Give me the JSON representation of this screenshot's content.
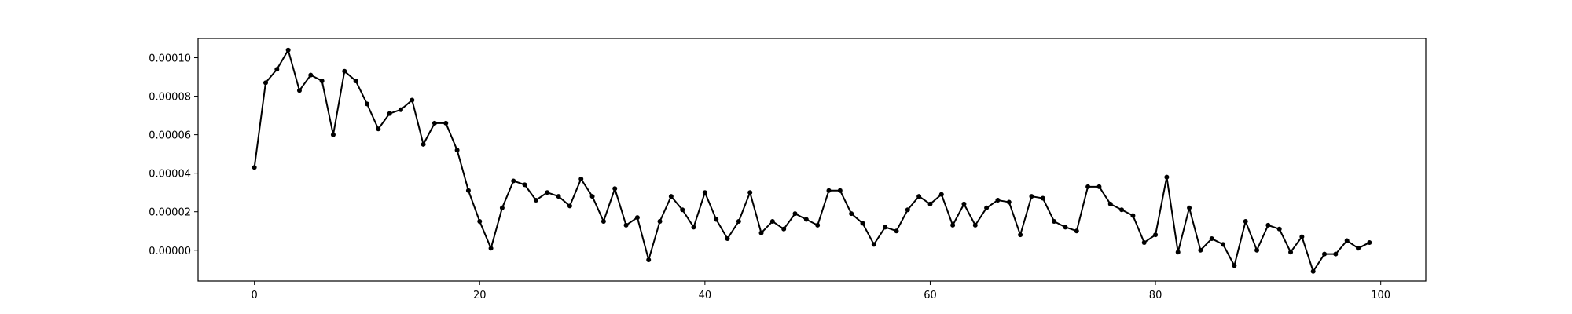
{
  "chart_data": {
    "type": "line",
    "title": "",
    "xlabel": "",
    "ylabel": "",
    "xlim": [
      -5,
      104
    ],
    "ylim": [
      -1.6e-05,
      0.00011
    ],
    "x_ticks": [
      0,
      20,
      40,
      60,
      80,
      100
    ],
    "x_tick_labels": [
      "0",
      "20",
      "40",
      "60",
      "80",
      "100"
    ],
    "y_ticks": [
      0,
      2e-05,
      4e-05,
      6e-05,
      8e-05,
      0.0001
    ],
    "y_tick_labels": [
      "0.00000",
      "0.00002",
      "0.00004",
      "0.00006",
      "0.00008",
      "0.00010"
    ],
    "grid": false,
    "legend": false,
    "series": [
      {
        "color": "#000000",
        "marker": "circle",
        "x": [
          0,
          1,
          2,
          3,
          4,
          5,
          6,
          7,
          8,
          9,
          10,
          11,
          12,
          13,
          14,
          15,
          16,
          17,
          18,
          19,
          20,
          21,
          22,
          23,
          24,
          25,
          26,
          27,
          28,
          29,
          30,
          31,
          32,
          33,
          34,
          35,
          36,
          37,
          38,
          39,
          40,
          41,
          42,
          43,
          44,
          45,
          46,
          47,
          48,
          49,
          50,
          51,
          52,
          53,
          54,
          55,
          56,
          57,
          58,
          59,
          60,
          61,
          62,
          63,
          64,
          65,
          66,
          67,
          68,
          69,
          70,
          71,
          72,
          73,
          74,
          75,
          76,
          77,
          78,
          79,
          80,
          81,
          82,
          83,
          84,
          85,
          86,
          87,
          88,
          89,
          90,
          91,
          92,
          93,
          94,
          95,
          96,
          97,
          98,
          99
        ],
        "y": [
          4.3e-05,
          8.7e-05,
          9.4e-05,
          0.000104,
          8.3e-05,
          9.1e-05,
          8.8e-05,
          6e-05,
          9.3e-05,
          8.8e-05,
          7.6e-05,
          6.3e-05,
          7.1e-05,
          7.3e-05,
          7.8e-05,
          5.5e-05,
          6.6e-05,
          6.6e-05,
          5.2e-05,
          3.1e-05,
          1.5e-05,
          1e-06,
          2.2e-05,
          3.6e-05,
          3.4e-05,
          2.6e-05,
          3e-05,
          2.8e-05,
          2.3e-05,
          3.7e-05,
          2.8e-05,
          1.5e-05,
          3.2e-05,
          1.3e-05,
          1.7e-05,
          -5e-06,
          1.5e-05,
          2.8e-05,
          2.1e-05,
          1.2e-05,
          3e-05,
          1.6e-05,
          6e-06,
          1.5e-05,
          3e-05,
          9e-06,
          1.5e-05,
          1.1e-05,
          1.9e-05,
          1.6e-05,
          1.3e-05,
          3.1e-05,
          3.1e-05,
          1.9e-05,
          1.4e-05,
          3e-06,
          1.2e-05,
          1e-05,
          2.1e-05,
          2.8e-05,
          2.4e-05,
          2.9e-05,
          1.3e-05,
          2.4e-05,
          1.3e-05,
          2.2e-05,
          2.6e-05,
          2.5e-05,
          8e-06,
          2.8e-05,
          2.7e-05,
          1.5e-05,
          1.2e-05,
          1e-05,
          3.3e-05,
          3.3e-05,
          2.4e-05,
          2.1e-05,
          1.8e-05,
          4e-06,
          8e-06,
          3.8e-05,
          -1e-06,
          2.2e-05,
          0,
          6e-06,
          3e-06,
          -8e-06,
          1.5e-05,
          0,
          1.3e-05,
          1.1e-05,
          -1e-06,
          7e-06,
          -1.1e-05,
          -2e-06,
          -2e-06,
          5e-06,
          1e-06,
          4e-06
        ]
      }
    ]
  }
}
